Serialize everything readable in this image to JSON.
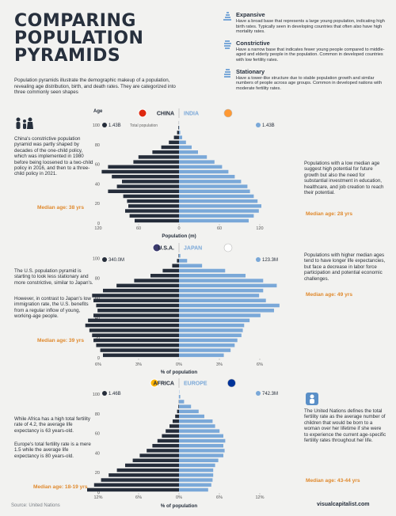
{
  "title": {
    "l1": "COMPARING",
    "l2": "POPULATION",
    "l3": "PYRAMIDS"
  },
  "intro": "Population pyramids illustrate the demographic makeup of a population, revealing age distribution, birth, and death rates. They are categorized into three commonly seen shapes",
  "types": [
    {
      "name": "Expansive",
      "desc": "Have a broad base that represents a large young population, indicating high birth rates. Typically seen in developing countries that often also have high mortality rates."
    },
    {
      "name": "Constrictive",
      "desc": "Have a narrow base that indicates fewer young people compared to middle-aged and elderly people in the population. Common in developed countries with low fertility rates."
    },
    {
      "name": "Stationary",
      "desc": "Have a tower-like structure due to stable population growth and similar numbers of people across age groups. Common in developed nations with moderate fertility rates."
    }
  ],
  "colors": {
    "left": "#252d3a",
    "right": "#7aa8d8",
    "accent": "#e08a2e",
    "blue_text": "#5a8fc7"
  },
  "icons": [
    "family-icon",
    "globe-icon",
    "person-icon",
    "baby-icon"
  ],
  "labels": {
    "age": "Age",
    "total_population": "Total population"
  },
  "notes": {
    "china": "China's constrictive population pyramid was partly shaped by decades of the one-child policy, which was implemented in 1980 before being loosened to a two-child policy in 2016, and then to a three-child policy in 2021.",
    "india": "Populations with a low median age suggest high potential for future growth but also the need for substantial investment in education, healthcare, and job creation to reach their potential.",
    "us1": "The U.S. population pyramid is starting to look less stationary and more constrictive, similar to Japan's.",
    "us2": "However, in contrast to Japan's low immigration rate, the U.S. benefits from a regular inflow of young, working-age people.",
    "japan": "Populations with higher median ages tend to have longer life expectancies, but face a decrease in labor force participation and potential economic challenges.",
    "africa1": "While Africa has a high total fertility rate of 4.2, the average life expectancy is 63 years-old.",
    "africa2": "Europe's total fertility rate is a mere 1.5 while the average life expectancy is 80 years-old.",
    "un": "The United Nations defines the total fertility rate as the average number of children that would be born to a woman over her lifetime if she were to experience the current age-specific fertility rates throughout her life."
  },
  "source": "Source: United Nations",
  "brand": "visualcapitalist.com",
  "chart_data": [
    {
      "type": "bar",
      "title": "",
      "left": {
        "name": "CHINA",
        "total": "1.43B",
        "median": "Median age: 38 yrs"
      },
      "right": {
        "name": "INDIA",
        "total": "1.43B",
        "median": "Median age: 28 yrs"
      },
      "xlabel": "Population (m)",
      "xticks": [
        "120",
        "60",
        "0",
        "60",
        "120"
      ],
      "xlim": [
        0,
        150
      ],
      "yticks": [
        "0",
        "20",
        "40",
        "60",
        "80",
        "100"
      ],
      "age_groups": [
        "0-4",
        "5-9",
        "10-14",
        "15-19",
        "20-24",
        "25-29",
        "30-34",
        "35-39",
        "40-44",
        "45-49",
        "50-54",
        "55-59",
        "60-64",
        "65-69",
        "70-74",
        "75-79",
        "80-84",
        "85-89",
        "90-94",
        "95-99",
        "100+"
      ],
      "series": [
        {
          "name": "CHINA",
          "values": [
            70,
            78,
            85,
            80,
            82,
            88,
            112,
            98,
            90,
            106,
            122,
            112,
            72,
            64,
            42,
            28,
            16,
            8,
            3,
            1,
            0.2
          ]
        },
        {
          "name": "INDIA",
          "values": [
            110,
            118,
            126,
            130,
            124,
            118,
            112,
            108,
            98,
            88,
            78,
            68,
            56,
            44,
            30,
            20,
            11,
            5,
            2,
            0.6,
            0.1
          ]
        }
      ]
    },
    {
      "type": "bar",
      "title": "",
      "left": {
        "name": "U.S.A.",
        "total": "340.0M",
        "median": "Median age: 39 yrs"
      },
      "right": {
        "name": "JAPAN",
        "total": "123.3M",
        "median": "Median age: 49 yrs"
      },
      "xlabel": "% of population",
      "xticks": [
        "6%",
        "3%",
        "0%",
        "3%",
        "6%"
      ],
      "xlim": [
        0,
        7
      ],
      "yticks": [
        "0",
        "20",
        "40",
        "60",
        "80",
        "100"
      ],
      "age_groups": [
        "0-4",
        "5-9",
        "10-14",
        "15-19",
        "20-24",
        "25-29",
        "30-34",
        "35-39",
        "40-44",
        "45-49",
        "50-54",
        "55-59",
        "60-64",
        "65-69",
        "70-74",
        "75-79",
        "80-84",
        "85-89",
        "90-94",
        "95-99",
        "100+"
      ],
      "series": [
        {
          "name": "U.S.A.",
          "values": [
            5.6,
            5.8,
            6.1,
            6.3,
            6.4,
            6.6,
            6.9,
            6.7,
            6.3,
            6.0,
            6.1,
            6.3,
            6.4,
            5.6,
            4.6,
            3.3,
            2.1,
            1.2,
            0.5,
            0.15,
            0.03
          ]
        },
        {
          "name": "JAPAN",
          "values": [
            3.3,
            3.8,
            4.1,
            4.3,
            4.6,
            4.7,
            4.8,
            5.2,
            6.0,
            7.0,
            7.4,
            6.4,
            5.9,
            6.2,
            7.2,
            6.2,
            4.9,
            3.4,
            1.7,
            0.6,
            0.1
          ]
        }
      ]
    },
    {
      "type": "bar",
      "title": "",
      "left": {
        "name": "AFRICA",
        "total": "1.46B",
        "median": "Median age: 18-19 yrs"
      },
      "right": {
        "name": "EUROPE",
        "total": "742.3M",
        "median": "Median age: 43-44 yrs"
      },
      "xlabel": "% of population",
      "xticks": [
        "12%",
        "6%",
        "0%",
        "6%",
        "12%"
      ],
      "xlim": [
        0,
        15
      ],
      "yticks": [
        "0",
        "20",
        "40",
        "60",
        "80",
        "100"
      ],
      "age_groups": [
        "0-4",
        "5-9",
        "10-14",
        "15-19",
        "20-24",
        "25-29",
        "30-34",
        "35-39",
        "40-44",
        "45-49",
        "50-54",
        "55-59",
        "60-64",
        "65-69",
        "70-74",
        "75-79",
        "80-84",
        "85-89",
        "90-94",
        "95-99",
        "100+"
      ],
      "series": [
        {
          "name": "AFRICA",
          "values": [
            14.5,
            13.4,
            12.3,
            11.1,
            9.8,
            8.5,
            7.3,
            6.2,
            5.1,
            4.2,
            3.4,
            2.7,
            2.1,
            1.5,
            1.0,
            0.6,
            0.3,
            0.1,
            0.03,
            0.01,
            0
          ]
        },
        {
          "name": "EUROPE",
          "values": [
            4.6,
            5.1,
            5.3,
            5.4,
            5.4,
            5.7,
            6.2,
            7.0,
            7.2,
            7.0,
            7.3,
            7.0,
            6.4,
            5.7,
            5.3,
            4.0,
            3.1,
            1.9,
            0.8,
            0.2,
            0.04
          ]
        }
      ]
    }
  ]
}
